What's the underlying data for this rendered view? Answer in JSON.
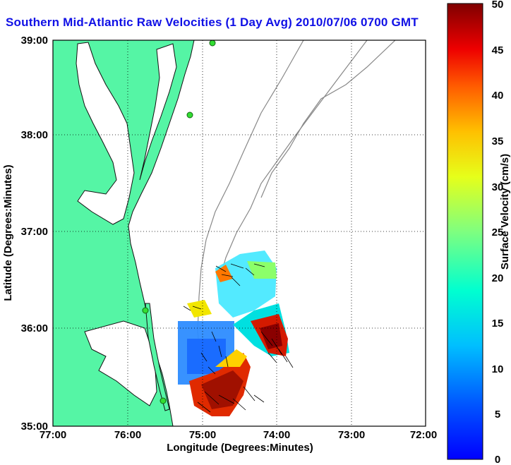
{
  "title": "Southern Mid-Atlantic Raw Velocities (1 Day Avg) 2010/07/06 0700 GMT",
  "map": {
    "xlabel": "Longitude (Degrees:Minutes)",
    "ylabel": "Latitude (Degrees:Minutes)",
    "x_ticks": [
      "77:00",
      "76:00",
      "75:00",
      "74:00",
      "73:00",
      "72:00"
    ],
    "y_ticks": [
      "39:00",
      "38:00",
      "37:00",
      "36:00",
      "35:00"
    ],
    "grid": "dotted",
    "land_color": "#55f5a5",
    "station_color": "#33dd33",
    "contour_color": "#888888"
  },
  "colorbar": {
    "label": "Surface Velocity (cm/s)",
    "ticks": [
      "50",
      "45",
      "40",
      "35",
      "30",
      "25",
      "20",
      "15",
      "10",
      "5",
      "0"
    ],
    "range": [
      0,
      50
    ],
    "colormap": "jet"
  }
}
